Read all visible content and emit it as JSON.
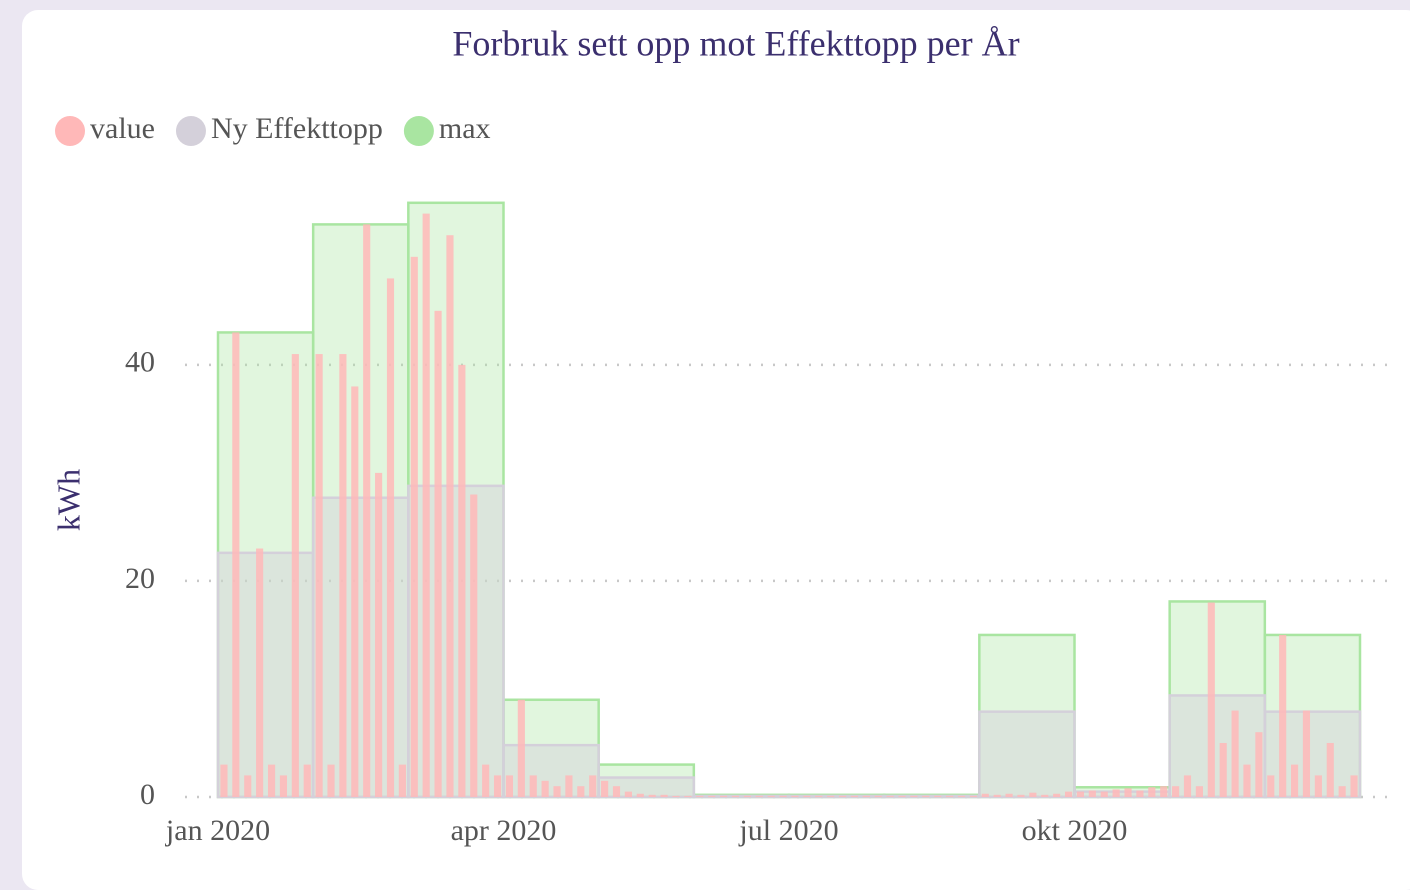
{
  "chart_data": {
    "type": "step-area",
    "title": "Forbruk sett opp mot Effekttopp per År",
    "ylabel": "kWh",
    "categories": [
      "jan 2020",
      null,
      null,
      "apr 2020",
      null,
      null,
      "jul 2020",
      null,
      null,
      "okt 2020",
      null,
      null
    ],
    "ylim": [
      0,
      56
    ],
    "yticks": [
      0,
      20,
      40
    ],
    "grid": true,
    "legend": "top-left",
    "series": [
      {
        "name": "value",
        "color": "#ffb8b8",
        "values": [
          [
            3,
            43,
            2,
            23,
            3,
            2,
            41,
            3
          ],
          [
            41,
            3,
            41,
            38,
            53,
            30,
            48,
            3
          ],
          [
            50,
            54,
            45,
            52,
            40,
            28,
            3,
            2
          ],
          [
            2,
            9,
            2,
            1.5,
            1,
            2,
            1,
            2
          ],
          [
            1.5,
            1,
            0.5,
            0.3,
            0.2,
            0.2,
            0.1,
            0.1
          ],
          [
            0.1,
            0.1,
            0.1,
            0.1,
            0.1,
            0.1,
            0.1,
            0.1
          ],
          [
            0.1,
            0.1,
            0.1,
            0.1,
            0.1,
            0.1,
            0.1,
            0.1
          ],
          [
            0.1,
            0.1,
            0.1,
            0.1,
            0.1,
            0.1,
            0.1,
            0.1
          ],
          [
            0.3,
            0.2,
            0.3,
            0.2,
            0.4,
            0.2,
            0.3,
            0.5
          ],
          [
            0.5,
            0.6,
            0.5,
            0.7,
            0.8,
            0.6,
            0.9,
            1
          ],
          [
            1,
            2,
            1,
            18,
            5,
            8,
            3,
            6
          ],
          [
            2,
            15,
            3,
            8,
            2,
            5,
            1,
            2
          ]
        ]
      },
      {
        "name": "Ny Effekttopp",
        "color": "#d4d0da",
        "values": [
          22.6,
          27.7,
          28.8,
          4.8,
          1.8,
          0.1,
          0.1,
          0.1,
          7.9,
          0.5,
          9.4,
          7.9
        ]
      },
      {
        "name": "max",
        "color": "#a9e5a1",
        "values": [
          43,
          53,
          55,
          9,
          3,
          0.2,
          0.2,
          0.2,
          15,
          0.9,
          18.1,
          15
        ]
      }
    ]
  }
}
